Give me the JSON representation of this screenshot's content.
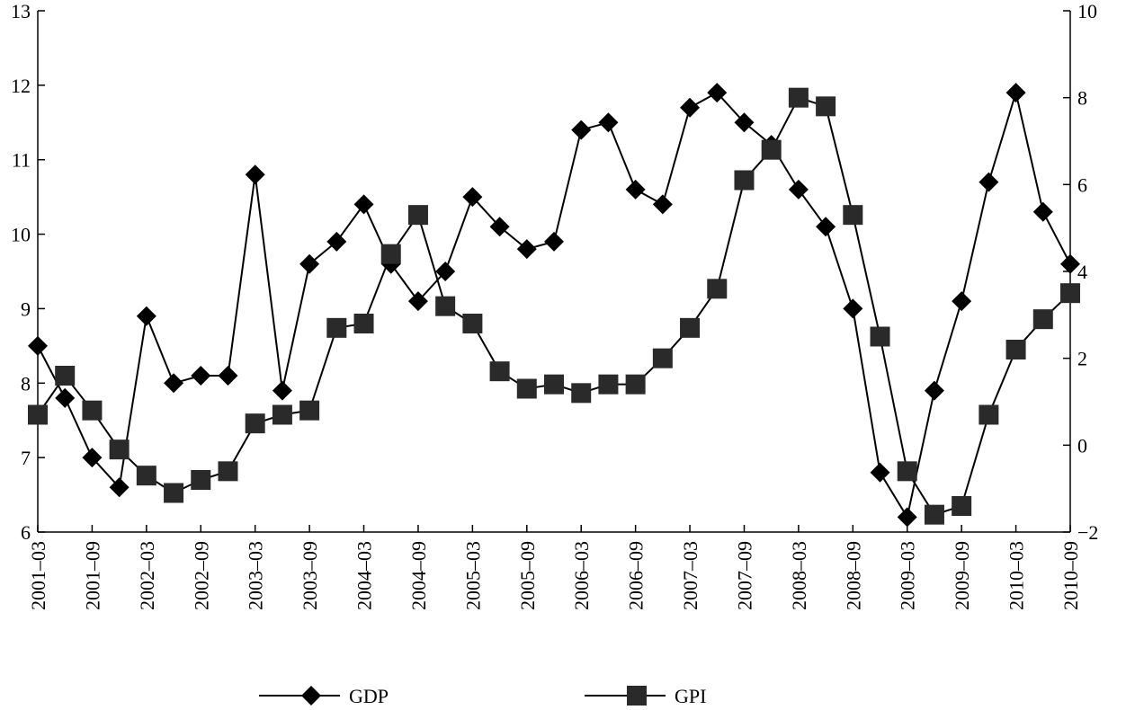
{
  "chart_data": {
    "type": "line",
    "x": [
      "2001-03",
      "2001-06",
      "2001-09",
      "2001-12",
      "2002-03",
      "2002-06",
      "2002-09",
      "2002-12",
      "2003-03",
      "2003-06",
      "2003-09",
      "2003-12",
      "2004-03",
      "2004-06",
      "2004-09",
      "2004-12",
      "2005-03",
      "2005-06",
      "2005-09",
      "2005-12",
      "2006-03",
      "2006-06",
      "2006-09",
      "2006-12",
      "2007-03",
      "2007-06",
      "2007-09",
      "2007-12",
      "2008-03",
      "2008-06",
      "2008-09",
      "2008-12",
      "2009-03",
      "2009-06",
      "2009-09",
      "2009-12",
      "2010-03",
      "2010-06",
      "2010-09"
    ],
    "x_tick_labels": [
      "2001–03",
      "2001–09",
      "2002–03",
      "2002–09",
      "2003–03",
      "2003–09",
      "2004–03",
      "2004–09",
      "2005–03",
      "2005–09",
      "2006–03",
      "2006–09",
      "2007–03",
      "2007–09",
      "2008–03",
      "2008–09",
      "2009–03",
      "2009–09",
      "2010–03",
      "2010–09"
    ],
    "y_left": {
      "ylim": [
        6,
        13
      ],
      "ticks": [
        "6",
        "7",
        "8",
        "9",
        "10",
        "11",
        "12",
        "13"
      ]
    },
    "y_right": {
      "ylim": [
        -2,
        10
      ],
      "ticks": [
        "−2",
        "0",
        "2",
        "4",
        "6",
        "8",
        "10"
      ]
    },
    "series": [
      {
        "name": "GDP",
        "axis": "left",
        "marker": "diamond",
        "values": [
          8.5,
          7.8,
          7.0,
          6.6,
          8.9,
          8.0,
          8.1,
          8.1,
          10.8,
          7.9,
          9.6,
          9.9,
          10.4,
          9.6,
          9.1,
          9.5,
          10.5,
          10.1,
          9.8,
          9.9,
          11.4,
          11.5,
          10.6,
          10.4,
          11.7,
          11.9,
          11.5,
          11.2,
          10.6,
          10.1,
          9.0,
          6.8,
          6.2,
          7.9,
          9.1,
          10.7,
          11.9,
          10.3,
          9.6
        ]
      },
      {
        "name": "GPI",
        "axis": "right",
        "marker": "square",
        "values": [
          0.7,
          1.6,
          0.8,
          -0.1,
          -0.7,
          -1.1,
          -0.8,
          -0.6,
          0.5,
          0.7,
          0.8,
          2.7,
          2.8,
          4.4,
          5.3,
          3.2,
          2.8,
          1.7,
          1.3,
          1.4,
          1.2,
          1.4,
          1.4,
          2.0,
          2.7,
          3.6,
          6.1,
          6.8,
          8.0,
          7.8,
          5.3,
          2.5,
          -0.6,
          -1.6,
          -1.4,
          0.7,
          2.2,
          2.9,
          3.5
        ]
      }
    ],
    "legend_position": "bottom-center",
    "grid": false
  },
  "colors": {
    "line": "#000000",
    "marker": "#000000",
    "gpi_marker": "#2a2a2a"
  }
}
